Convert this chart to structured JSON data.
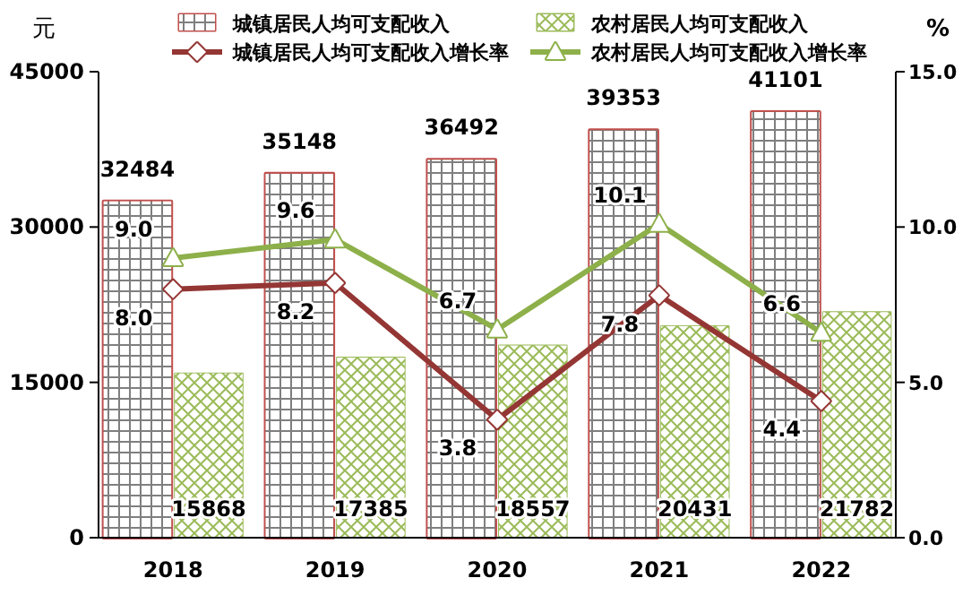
{
  "chart_data": {
    "type": "bar",
    "categories": [
      "2018",
      "2019",
      "2020",
      "2021",
      "2022"
    ],
    "ylabel": "元",
    "y2label": "%",
    "ylim": [
      0,
      45000
    ],
    "yticks": [
      0,
      15000,
      30000,
      45000
    ],
    "y2lim": [
      0,
      15
    ],
    "y2ticks": [
      {
        "value": 0,
        "label": "0.0"
      },
      {
        "value": 5,
        "label": "5.0"
      },
      {
        "value": 10,
        "label": "10.0"
      },
      {
        "value": 15,
        "label": "15.0"
      }
    ],
    "legend": "top",
    "data_labels": true,
    "grid": false,
    "series": [
      {
        "name": "城镇居民人均可支配收入",
        "color": "#c0504d",
        "values": [
          32484,
          35148,
          36492,
          39353,
          41101
        ]
      },
      {
        "name": "农村居民人均可支配收入",
        "color": "#9bbb59",
        "values": [
          15868,
          17385,
          18557,
          20431,
          21782
        ]
      },
      {
        "name": "城镇居民人均可支配收入增长率",
        "type": "line",
        "axis": "y2",
        "marker": "diamond",
        "color": "#943634",
        "value_labels": [
          "8.0",
          "8.2",
          "3.8",
          "7.8",
          "4.4"
        ],
        "values": [
          8.0,
          8.2,
          3.8,
          7.8,
          4.4
        ]
      },
      {
        "name": "农村居民人均可支配收入增长率",
        "type": "line",
        "axis": "y2",
        "marker": "triangle",
        "color": "#8db04a",
        "value_labels": [
          "9.0",
          "9.6",
          "6.7",
          "10.1",
          "6.6"
        ],
        "values": [
          9.0,
          9.6,
          6.7,
          10.1,
          6.6
        ]
      }
    ]
  }
}
